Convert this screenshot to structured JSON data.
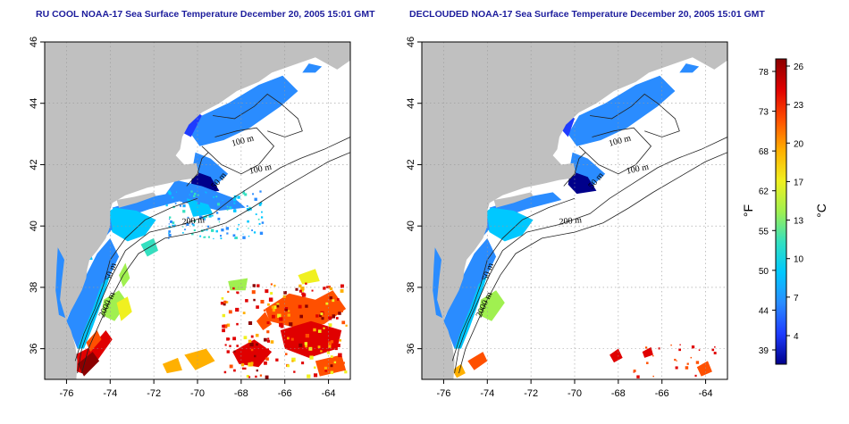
{
  "panels": [
    {
      "title": "RU COOL NOAA-17 Sea Surface Temperature December 20, 2005 15:01 GMT",
      "kind": "raw",
      "contour_labels": [
        "100 m",
        "100 m",
        "50 m",
        "200 m",
        "50 m",
        "2000 m"
      ]
    },
    {
      "title": "DECLOUDED NOAA-17 Sea Surface Temperature December 20, 2005 15:01 GMT",
      "kind": "declouded",
      "contour_labels": [
        "100 m",
        "100 m",
        "50 m",
        "200 m",
        "50 m",
        "2000 m"
      ]
    }
  ],
  "map_axes": {
    "lon_ticks": [
      "-76",
      "-74",
      "-72",
      "-70",
      "-68",
      "-66",
      "-64"
    ],
    "lat_ticks": [
      "46",
      "44",
      "42",
      "40",
      "38",
      "36"
    ],
    "lon_range": [
      -77,
      -63
    ],
    "lat_range": [
      35,
      46
    ],
    "grid": "dotted"
  },
  "colorbar": {
    "left_unit": "°F",
    "right_unit": "°C",
    "fahrenheit_ticks": [
      "78",
      "73",
      "68",
      "62",
      "55",
      "50",
      "44",
      "39"
    ],
    "celsius_ticks": [
      "26",
      "23",
      "20",
      "17",
      "13",
      "10",
      "7",
      "4"
    ],
    "colors": [
      "#00008b",
      "#1e3cff",
      "#2a8cff",
      "#00c8ff",
      "#33e0c0",
      "#a0f050",
      "#f0f020",
      "#ffb000",
      "#ff5000",
      "#e00000",
      "#8b0000"
    ]
  },
  "colors": {
    "land": "#c0c0c0",
    "ocean_background": "#ffffff",
    "title": "#1c1c9c",
    "contour": "#222222"
  }
}
